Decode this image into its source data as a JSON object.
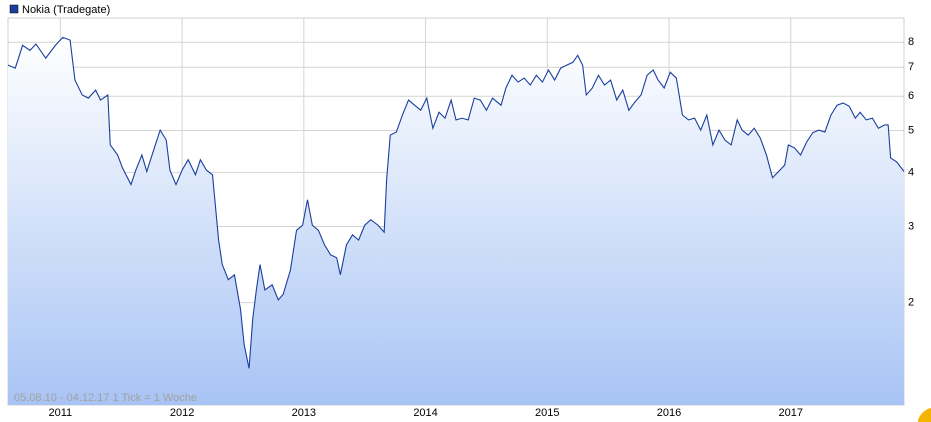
{
  "chart_data": {
    "type": "area",
    "footnote": "05.08.10 - 04.12.17   1 Tick = 1 Woche",
    "log_scale": true,
    "grid": true,
    "xlim": [
      2010.57,
      2017.93
    ],
    "ylim": [
      1.16,
      9.1
    ],
    "xticks": [
      2011,
      2012,
      2013,
      2014,
      2015,
      2016,
      2017
    ],
    "yticks": [
      2,
      3,
      4,
      5,
      6,
      7,
      8
    ],
    "series": [
      {
        "name": "Nokia (Tradegate)",
        "color": "#1a3f9c",
        "x": [
          2010.57,
          2010.63,
          2010.69,
          2010.75,
          2010.8,
          2010.88,
          2010.96,
          2011.02,
          2011.08,
          2011.12,
          2011.18,
          2011.23,
          2011.29,
          2011.33,
          2011.39,
          2011.41,
          2011.47,
          2011.51,
          2011.58,
          2011.62,
          2011.67,
          2011.71,
          2011.78,
          2011.82,
          2011.87,
          2011.9,
          2011.95,
          2012.0,
          2012.05,
          2012.11,
          2012.15,
          2012.2,
          2012.25,
          2012.3,
          2012.33,
          2012.38,
          2012.43,
          2012.48,
          2012.51,
          2012.55,
          2012.58,
          2012.61,
          2012.64,
          2012.68,
          2012.74,
          2012.79,
          2012.83,
          2012.89,
          2012.94,
          2012.99,
          2013.03,
          2013.07,
          2013.12,
          2013.17,
          2013.22,
          2013.27,
          2013.3,
          2013.35,
          2013.4,
          2013.45,
          2013.5,
          2013.55,
          2013.61,
          2013.66,
          2013.68,
          2013.71,
          2013.76,
          2013.81,
          2013.86,
          2013.91,
          2013.96,
          2014.01,
          2014.06,
          2014.11,
          2014.16,
          2014.21,
          2014.25,
          2014.3,
          2014.35,
          2014.4,
          2014.45,
          2014.5,
          2014.55,
          2014.62,
          2014.66,
          2014.71,
          2014.76,
          2014.81,
          2014.86,
          2014.91,
          2014.96,
          2015.01,
          2015.06,
          2015.11,
          2015.16,
          2015.21,
          2015.25,
          2015.29,
          2015.32,
          2015.37,
          2015.42,
          2015.47,
          2015.52,
          2015.57,
          2015.62,
          2015.67,
          2015.72,
          2015.77,
          2015.82,
          2015.87,
          2015.91,
          2015.96,
          2016.01,
          2016.06,
          2016.11,
          2016.16,
          2016.21,
          2016.26,
          2016.31,
          2016.36,
          2016.41,
          2016.46,
          2016.51,
          2016.56,
          2016.6,
          2016.65,
          2016.7,
          2016.75,
          2016.8,
          2016.85,
          2016.9,
          2016.95,
          2016.98,
          2017.03,
          2017.08,
          2017.13,
          2017.18,
          2017.23,
          2017.28,
          2017.33,
          2017.38,
          2017.43,
          2017.48,
          2017.53,
          2017.57,
          2017.62,
          2017.67,
          2017.72,
          2017.77,
          2017.8,
          2017.82,
          2017.87,
          2017.93
        ],
        "values": [
          7.08,
          6.97,
          7.87,
          7.66,
          7.92,
          7.35,
          7.87,
          8.21,
          8.09,
          6.54,
          6.04,
          5.94,
          6.2,
          5.88,
          6.04,
          4.63,
          4.39,
          4.1,
          3.75,
          4.05,
          4.39,
          4.02,
          4.63,
          5.01,
          4.75,
          4.05,
          3.75,
          4.05,
          4.28,
          3.95,
          4.28,
          4.05,
          3.95,
          2.79,
          2.45,
          2.26,
          2.32,
          1.93,
          1.6,
          1.41,
          1.83,
          2.14,
          2.45,
          2.14,
          2.2,
          2.03,
          2.09,
          2.38,
          2.94,
          3.02,
          3.46,
          3.02,
          2.94,
          2.72,
          2.58,
          2.54,
          2.32,
          2.72,
          2.87,
          2.79,
          3.02,
          3.11,
          3.02,
          2.91,
          3.85,
          4.88,
          4.96,
          5.43,
          5.88,
          5.72,
          5.57,
          5.94,
          5.06,
          5.51,
          5.34,
          5.88,
          5.29,
          5.34,
          5.29,
          5.94,
          5.88,
          5.57,
          5.94,
          5.72,
          6.27,
          6.71,
          6.47,
          6.61,
          6.37,
          6.71,
          6.47,
          6.9,
          6.54,
          6.97,
          7.08,
          7.19,
          7.46,
          7.08,
          6.04,
          6.27,
          6.71,
          6.37,
          6.54,
          5.88,
          6.2,
          5.57,
          5.82,
          6.04,
          6.71,
          6.9,
          6.54,
          6.27,
          6.82,
          6.61,
          5.43,
          5.29,
          5.34,
          5.01,
          5.43,
          4.63,
          5.01,
          4.75,
          4.63,
          5.29,
          5.01,
          4.88,
          5.06,
          4.8,
          4.39,
          3.89,
          4.02,
          4.16,
          4.63,
          4.56,
          4.39,
          4.7,
          4.94,
          5.01,
          4.96,
          5.43,
          5.72,
          5.79,
          5.69,
          5.34,
          5.51,
          5.29,
          5.34,
          5.06,
          5.15,
          5.15,
          4.32,
          4.23,
          4.02
        ]
      }
    ]
  }
}
